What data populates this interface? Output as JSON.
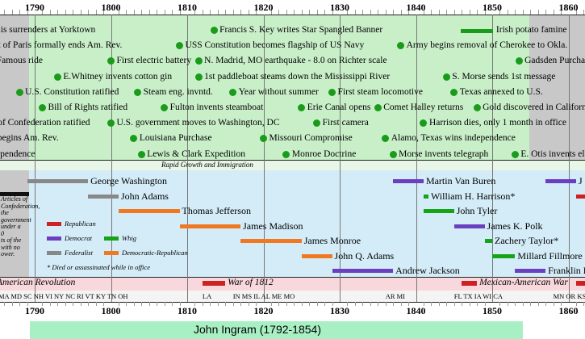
{
  "timeline": {
    "year_start": 1785,
    "year_end": 1865,
    "decade_labels_top": [
      "1790",
      "1800",
      "1810",
      "1820",
      "1830",
      "1840",
      "1850",
      "1860"
    ],
    "decade_labels_bottom": [
      "1790",
      "1800",
      "1810",
      "1820",
      "1830",
      "1840",
      "1850",
      "1860"
    ],
    "colors": {
      "event_dot": "#1a9b1a",
      "band_gray": "#c8c8c8",
      "band_green": "#c9efc9",
      "band_blue": "#d4ecf8",
      "band_pink": "#f8d8dc",
      "footer": "#a8f0c4",
      "republican": "#cc2222",
      "democrat": "#6a3fc0",
      "federalist": "#888888",
      "whig": "#16a316",
      "democratic_republican": "#f07820",
      "other": "#111111"
    }
  },
  "events": [
    {
      "text": "Cornwallis surrenders at Yorktown",
      "year": 1781,
      "row": 0,
      "dot": false
    },
    {
      "text": "Francis S. Key writes Star Spangled Banner",
      "year": 1813.5,
      "row": 0,
      "dot": true
    },
    {
      "text": "Irish potato famine",
      "year": 1846.5,
      "row": 0,
      "dot": false,
      "bar": true
    },
    {
      "text": "Treat of Paris formally ends Am. Rev.",
      "year": 1783,
      "row": 1,
      "dot": false
    },
    {
      "text": "USS Constitution becomes flagship of US Navy",
      "year": 1809,
      "row": 1,
      "dot": true
    },
    {
      "text": "Army begins removal of Cherokee to Okla.",
      "year": 1838,
      "row": 1,
      "dot": true
    },
    {
      "text": "Famous ride",
      "year": 1785,
      "row": 2,
      "dot": false
    },
    {
      "text": "First electric battery",
      "year": 1800,
      "row": 2,
      "dot": true
    },
    {
      "text": "N. Madrid, MO earthquake - 8.0 on Richter scale",
      "year": 1811.5,
      "row": 2,
      "dot": true
    },
    {
      "text": "Gadsden Purchase",
      "year": 1853.5,
      "row": 2,
      "dot": true
    },
    {
      "text": "E.Whitney invents cotton gin",
      "year": 1793,
      "row": 3,
      "dot": true
    },
    {
      "text": "1st paddleboat steams down the Mississippi River",
      "year": 1811.5,
      "row": 3,
      "dot": true
    },
    {
      "text": "S. Morse sends 1st message",
      "year": 1844,
      "row": 3,
      "dot": true
    },
    {
      "text": "U.S. Constitution ratified",
      "year": 1788,
      "row": 4,
      "dot": true
    },
    {
      "text": "Steam eng. invntd.",
      "year": 1803.5,
      "row": 4,
      "dot": true
    },
    {
      "text": "Year without summer",
      "year": 1816,
      "row": 4,
      "dot": true
    },
    {
      "text": "First steam locomotive",
      "year": 1829,
      "row": 4,
      "dot": true
    },
    {
      "text": "Texas annexed to U.S.",
      "year": 1845,
      "row": 4,
      "dot": true
    },
    {
      "text": "Bill of Rights ratified",
      "year": 1791,
      "row": 5,
      "dot": true
    },
    {
      "text": "Fulton invents steamboat",
      "year": 1807,
      "row": 5,
      "dot": true
    },
    {
      "text": "Erie Canal opens",
      "year": 1825,
      "row": 5,
      "dot": true
    },
    {
      "text": "Comet Halley returns",
      "year": 1835,
      "row": 5,
      "dot": true
    },
    {
      "text": "Gold discovered in California",
      "year": 1848,
      "row": 5,
      "dot": true
    },
    {
      "text": "Articles of Confederation ratified",
      "year": 1781,
      "row": 6,
      "dot": false
    },
    {
      "text": "U.S. government moves to Washington, DC",
      "year": 1800,
      "row": 6,
      "dot": true
    },
    {
      "text": "First camera",
      "year": 1827,
      "row": 6,
      "dot": true
    },
    {
      "text": "Harrison dies, only 1 month in office",
      "year": 1841,
      "row": 6,
      "dot": true
    },
    {
      "text": "Lexington, Concord begins Am. Rev.",
      "year": 1775,
      "row": 7,
      "dot": false
    },
    {
      "text": "Louisiana Purchase",
      "year": 1803,
      "row": 7,
      "dot": true
    },
    {
      "text": "Missouri Compromise",
      "year": 1820,
      "row": 7,
      "dot": true
    },
    {
      "text": "Alamo, Texas wins independence",
      "year": 1836,
      "row": 7,
      "dot": true
    },
    {
      "text": "Declaration of Independence",
      "year": 1776,
      "row": 8,
      "dot": false
    },
    {
      "text": "Lewis & Clark Expedition",
      "year": 1804,
      "row": 8,
      "dot": true
    },
    {
      "text": "Monroe Doctrine",
      "year": 1823,
      "row": 8,
      "dot": true
    },
    {
      "text": "Morse invents telegraph",
      "year": 1837,
      "row": 8,
      "dot": true
    },
    {
      "text": "E. Otis invents elevator",
      "year": 1853,
      "row": 8,
      "dot": true
    }
  ],
  "growth_band": {
    "text": "Rapid Growth and Immigration"
  },
  "presidents": [
    {
      "name": "George Washington",
      "start": 1789,
      "end": 1797,
      "party": "federalist",
      "row": 0
    },
    {
      "name": "John Adams",
      "start": 1797,
      "end": 1801,
      "party": "federalist",
      "row": 1
    },
    {
      "name": "Thomas Jefferson",
      "start": 1801,
      "end": 1809,
      "party": "democratic_republican",
      "row": 2
    },
    {
      "name": "James Madison",
      "start": 1809,
      "end": 1817,
      "party": "democratic_republican",
      "row": 3
    },
    {
      "name": "James Monroe",
      "start": 1817,
      "end": 1825,
      "party": "democratic_republican",
      "row": 4
    },
    {
      "name": "John Q. Adams",
      "start": 1825,
      "end": 1829,
      "party": "democratic_republican",
      "row": 5
    },
    {
      "name": "Andrew Jackson",
      "start": 1829,
      "end": 1837,
      "party": "democrat",
      "row": 6
    },
    {
      "name": "Martin Van Buren",
      "start": 1837,
      "end": 1841,
      "party": "democrat",
      "row": 0
    },
    {
      "name": "William H. Harrison*",
      "start": 1841,
      "end": 1841.6,
      "party": "whig",
      "row": 1
    },
    {
      "name": "John Tyler",
      "start": 1841,
      "end": 1845,
      "party": "whig",
      "row": 2
    },
    {
      "name": "James K. Polk",
      "start": 1845,
      "end": 1849,
      "party": "democrat",
      "row": 3
    },
    {
      "name": "Zachery Taylor*",
      "start": 1849,
      "end": 1850,
      "party": "whig",
      "row": 4
    },
    {
      "name": "Millard Fillmore",
      "start": 1850,
      "end": 1853,
      "party": "whig",
      "row": 5
    },
    {
      "name": "Franklin Pierce",
      "start": 1853,
      "end": 1857,
      "party": "democrat",
      "row": 6
    },
    {
      "name": "J",
      "start": 1857,
      "end": 1861,
      "party": "democrat",
      "row": 0
    },
    {
      "name": "",
      "start": 1861,
      "end": 1865,
      "party": "republican",
      "row": 1
    }
  ],
  "articles_note": [
    "Articles of",
    "Confederation, the",
    "government",
    "under a",
    "0",
    "ts of the",
    "with no",
    "ower."
  ],
  "legend": {
    "republican": "Republican",
    "democrat": "Democrat",
    "federalist": "Federalist",
    "whig": "Whig",
    "democratic_republican": "Democratic-Republican",
    "note": "* Died or assassinated while in office"
  },
  "wars": [
    {
      "text": "American Revolution",
      "start": 1775,
      "end": 1783
    },
    {
      "text": "War of 1812",
      "start": 1812,
      "end": 1815
    },
    {
      "text": "Mexican-American War",
      "start": 1846,
      "end": 1848
    },
    {
      "text": "",
      "start": 1861,
      "end": 1865
    }
  ],
  "states": [
    {
      "text": "MA MD SC NH VI NY NC RI VT KY TN OH",
      "year": 1788
    },
    {
      "text": "LA",
      "year": 1812
    },
    {
      "text": "IN MS IL AL ME MO",
      "year": 1816
    },
    {
      "text": "AR MI",
      "year": 1836
    },
    {
      "text": "FL TX IA WI CA",
      "year": 1845
    },
    {
      "text": "MN OR KS",
      "year": 1858
    }
  ],
  "footer": {
    "text": "John Ingram  (1792-1854)",
    "start": 1792,
    "end": 1854
  }
}
